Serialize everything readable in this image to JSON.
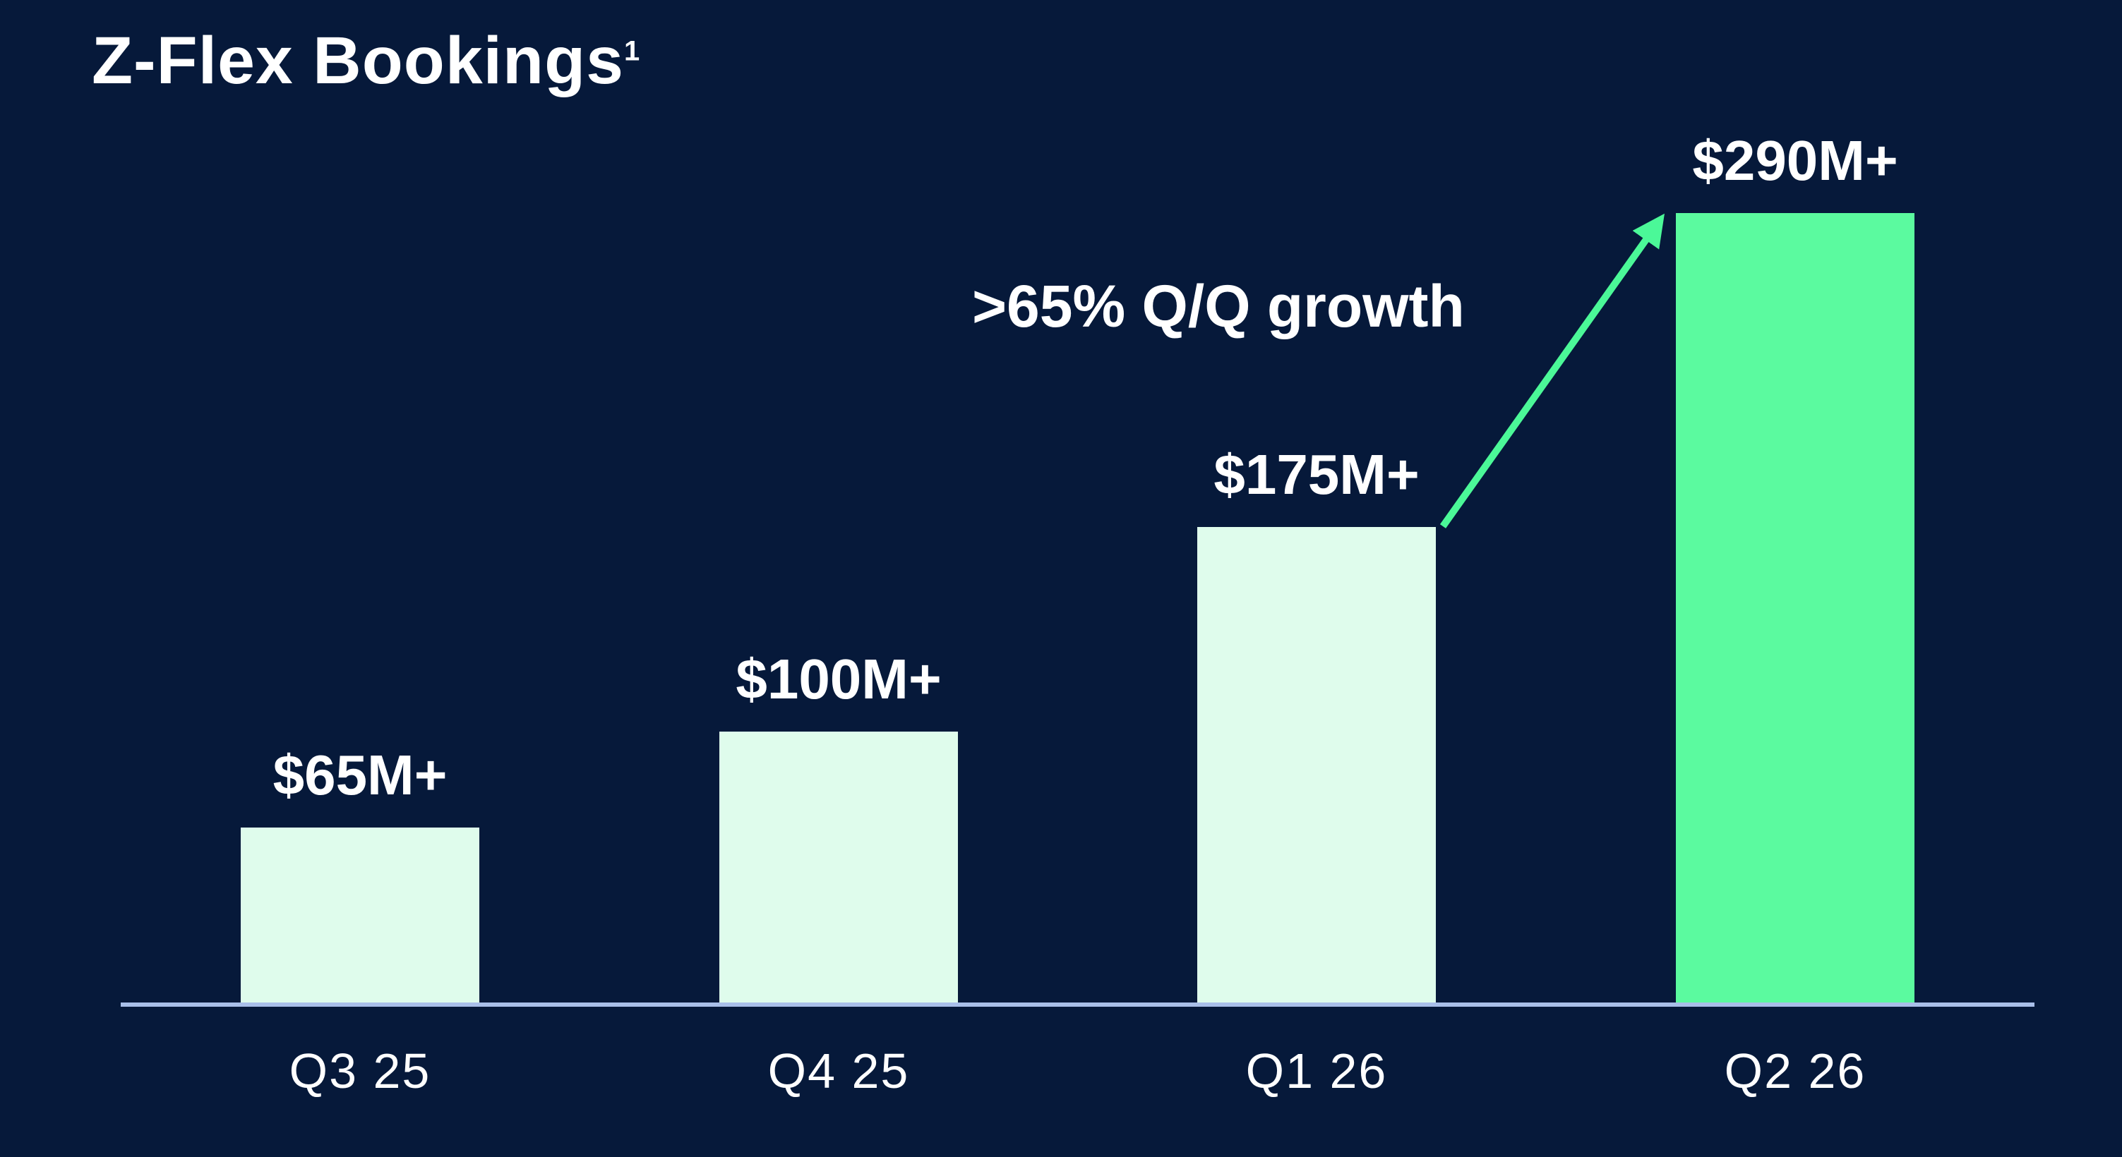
{
  "slide": {
    "title": "Z-Flex Bookings",
    "title_footnote_marker": "1"
  },
  "chart_data": {
    "type": "bar",
    "title": "Z-Flex Bookings",
    "title_footnote_marker": "1",
    "categories": [
      "Q3 25",
      "Q4 25",
      "Q1 26",
      "Q2 26"
    ],
    "values": [
      65,
      100,
      175,
      290
    ],
    "value_labels": [
      "$65M+",
      "$100M+",
      "$175M+",
      "$290M+"
    ],
    "unit": "$M",
    "ylim": [
      0,
      300
    ],
    "grid": false,
    "legend": false,
    "y_axis": "hidden",
    "x_baseline": "visible",
    "highlight_category": "Q2 26",
    "annotation": {
      "text": ">65% Q/Q growth",
      "arrow_from_category": "Q1 26",
      "arrow_to_category": "Q2 26"
    },
    "colors": {
      "background": "#06193a",
      "bar_fill": "#dffcec",
      "highlight_bar_fill": "#5bfa9f",
      "arrow": "#4bf898",
      "axis_line": "#a9bfe9",
      "text": "#ffffff"
    }
  }
}
